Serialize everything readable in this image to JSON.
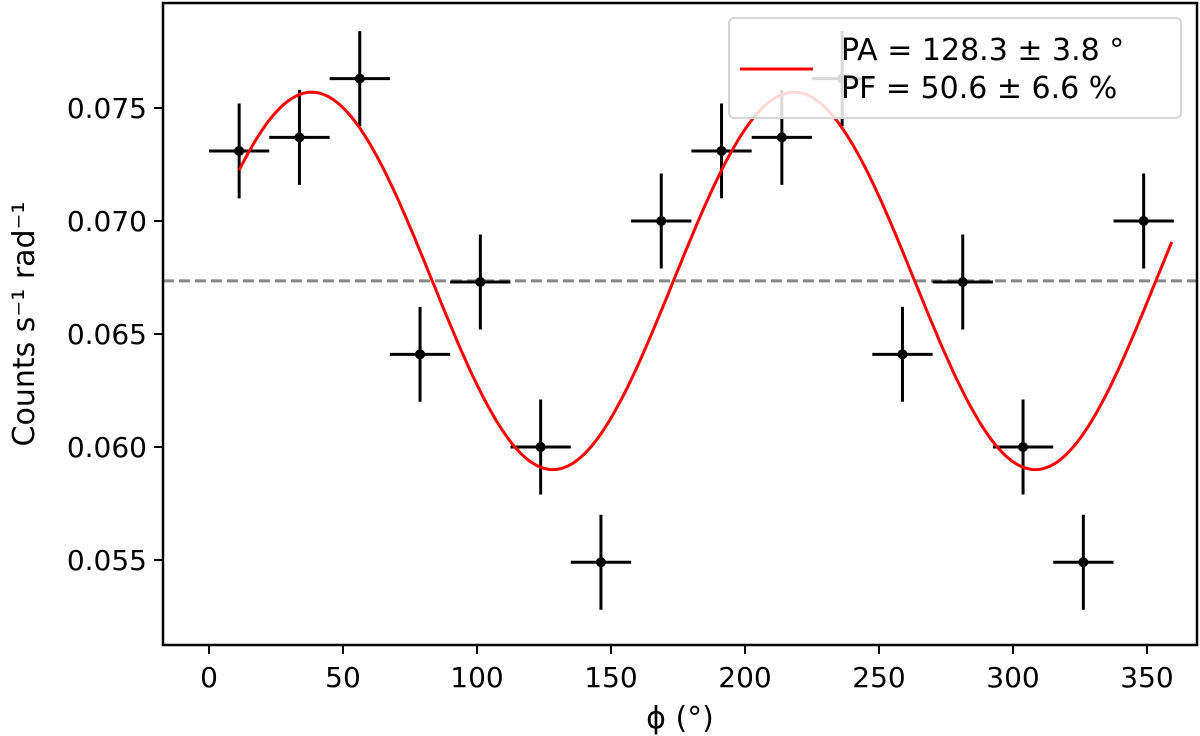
{
  "chart_data": {
    "type": "scatter",
    "xlabel": "ϕ (°)",
    "ylabel": "Counts s⁻¹ rad⁻¹",
    "xlim": [
      -18,
      372
    ],
    "ylim": [
      0.0523,
      0.079
    ],
    "xticks": [
      "0",
      "50",
      "100",
      "150",
      "200",
      "250",
      "300",
      "350"
    ],
    "xtick_values": [
      0,
      50,
      100,
      150,
      200,
      250,
      300,
      350
    ],
    "yticks": [
      "0.055",
      "0.060",
      "0.065",
      "0.070",
      "0.075"
    ],
    "ytick_values": [
      0.055,
      0.06,
      0.065,
      0.07,
      0.075
    ],
    "grid": false,
    "legend_placement": "top-right",
    "data": {
      "x": [
        11.25,
        33.75,
        56.25,
        78.75,
        101.25,
        123.75,
        146.25,
        168.75,
        191.25,
        213.75,
        236.25,
        258.75,
        281.25,
        303.75,
        326.25,
        348.75
      ],
      "y": [
        0.0731,
        0.0737,
        0.0763,
        0.0641,
        0.0673,
        0.06,
        0.0549,
        0.07,
        0.0731,
        0.0737,
        0.0763,
        0.0641,
        0.0673,
        0.06,
        0.0549,
        0.07
      ],
      "xerr": 11.25,
      "yerr": 0.0021,
      "color": "#000000"
    },
    "fit": {
      "label_lines": [
        "PA = 128.3 ± 3.8 °",
        "PF = 50.6 ± 6.6 %"
      ],
      "mean": 0.06735,
      "amplitude": 0.00835,
      "phase_min_deg": 128.3,
      "x_range": [
        11.25,
        360
      ],
      "color": "#ff0000"
    },
    "mean_line": {
      "y": 0.06735,
      "style": "dashed",
      "color": "#888888"
    }
  }
}
